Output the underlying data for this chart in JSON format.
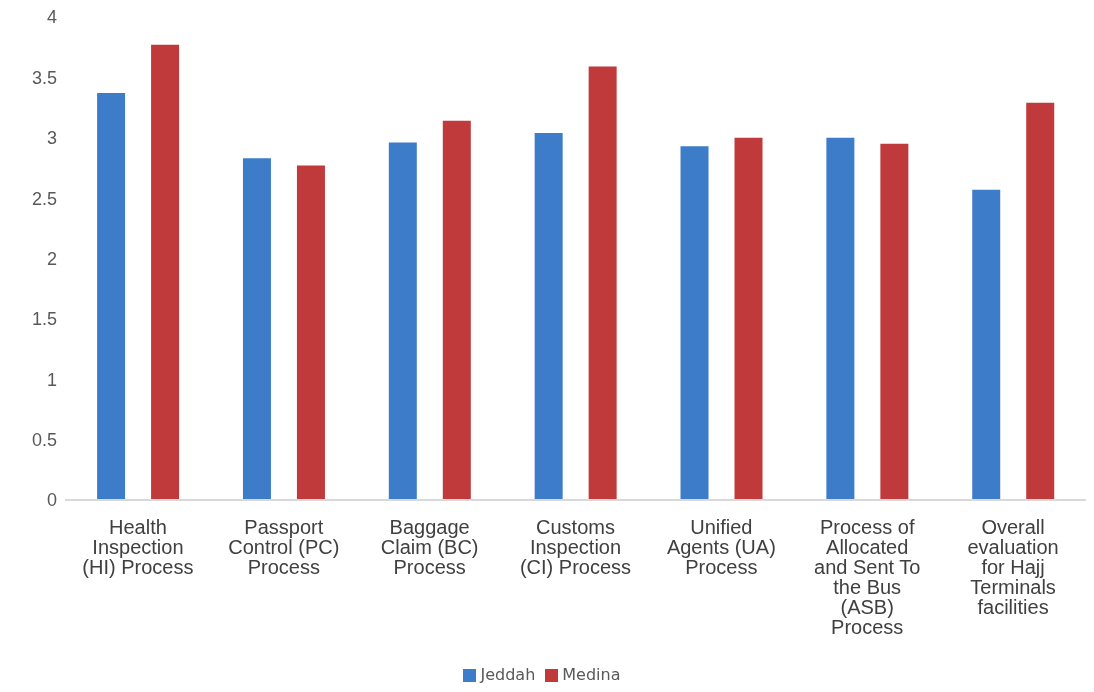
{
  "chart_data": {
    "type": "bar",
    "categories": [
      "Health Inspection (HI) Process",
      "Passport Control (PC) Process",
      "Baggage Claim (BC) Process",
      "Customs Inspection (CI) Process",
      "Unified Agents (UA) Process",
      "Process of Allocated and Sent To the Bus (ASB) Process",
      "Overall evaluation for Hajj Terminals facilities"
    ],
    "series": [
      {
        "name": "Jeddah",
        "color": "#3d7cc9",
        "values": [
          3.37,
          2.83,
          2.96,
          3.04,
          2.93,
          3.0,
          2.57
        ]
      },
      {
        "name": "Medina",
        "color": "#c0393b",
        "values": [
          3.77,
          2.77,
          3.14,
          3.59,
          3.0,
          2.95,
          3.29
        ]
      }
    ],
    "ylim": [
      0,
      4
    ],
    "yticks": [
      0,
      0.5,
      1,
      1.5,
      2,
      2.5,
      3,
      3.5,
      4
    ],
    "grid": false,
    "legend": "bottom"
  }
}
